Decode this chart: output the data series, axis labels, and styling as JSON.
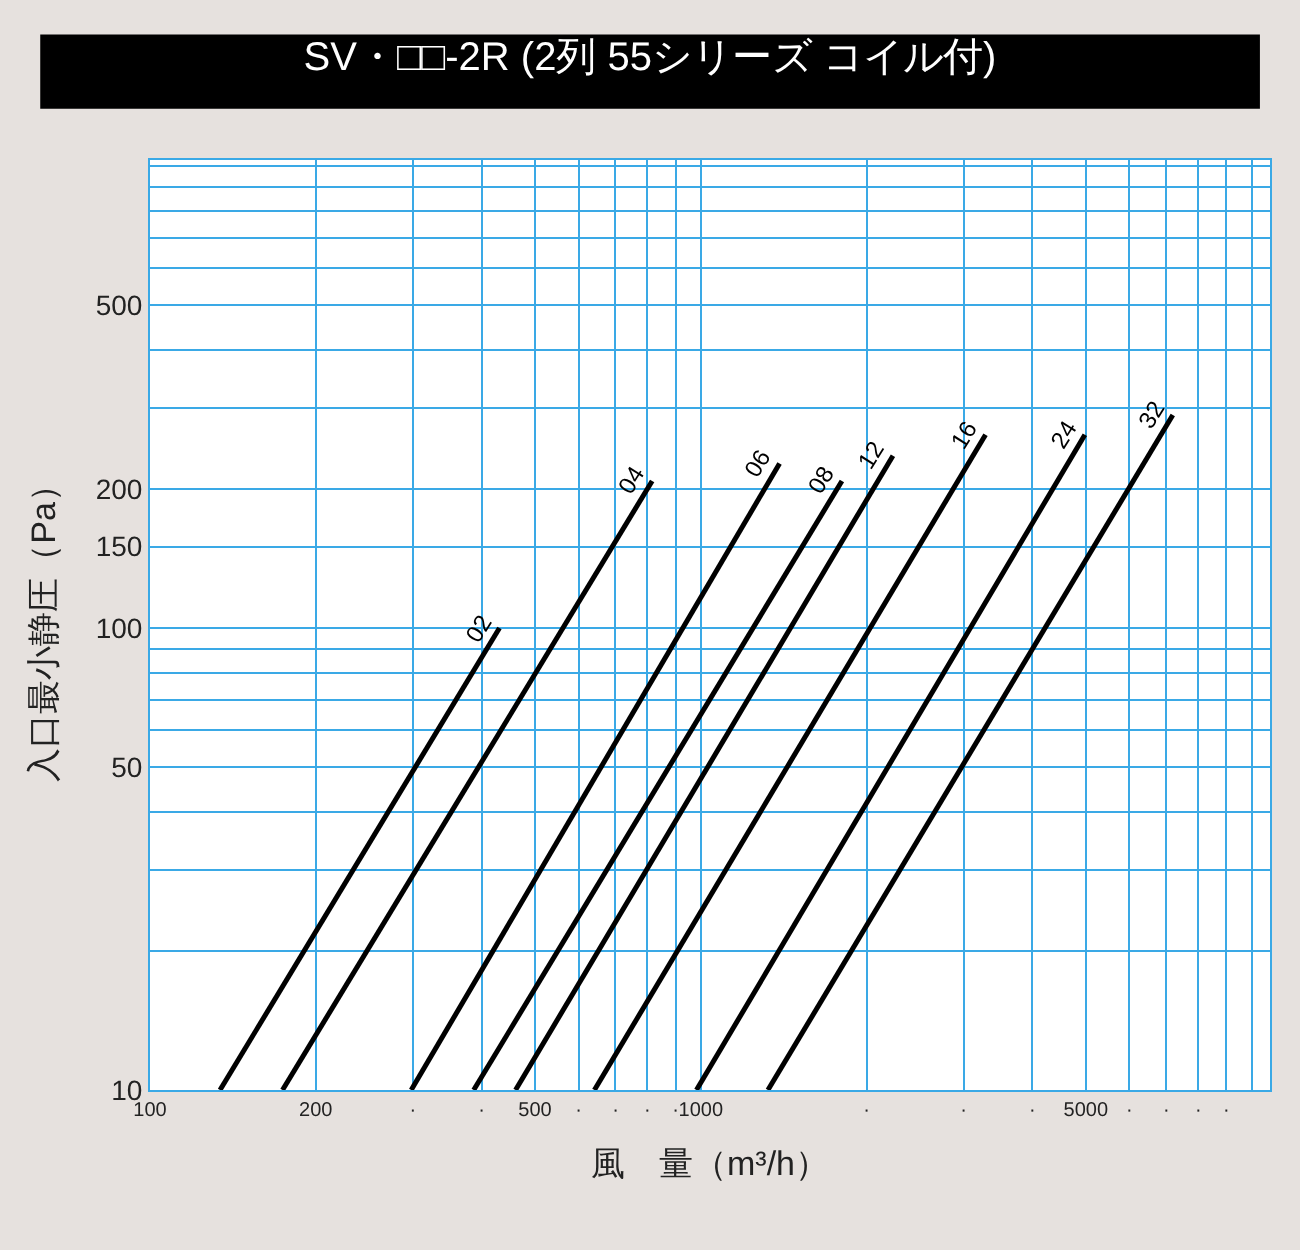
{
  "chart_data": {
    "type": "line",
    "title": "SV・□□-2R (2列 55シリーズ コイル付)",
    "xlabel": "風　量（m³/h）",
    "ylabel": "入口最小静圧（Pa）",
    "log": "xy",
    "grid": true,
    "legend": false,
    "marker": "none",
    "line_style": "solid",
    "xlim": [
      100,
      10800
    ],
    "ylim": [
      10,
      1030
    ],
    "xticks": [
      100,
      200,
      {
        "value": 300,
        "label": "·"
      },
      {
        "value": 400,
        "label": "·"
      },
      500,
      {
        "value": 600,
        "label": "·"
      },
      {
        "value": 700,
        "label": "·"
      },
      {
        "value": 800,
        "label": "·"
      },
      {
        "value": 900,
        "label": "·"
      },
      1000,
      {
        "value": 2000,
        "label": "·"
      },
      {
        "value": 3000,
        "label": "·"
      },
      {
        "value": 4000,
        "label": "·"
      },
      5000,
      {
        "value": 6000,
        "label": "·"
      },
      {
        "value": 7000,
        "label": "·"
      },
      {
        "value": 8000,
        "label": "·"
      },
      {
        "value": 9000,
        "label": "·"
      },
      {
        "value": 10000,
        "label": null
      }
    ],
    "yticks": [
      10,
      {
        "value": 20,
        "label": null
      },
      {
        "value": 30,
        "label": null
      },
      {
        "value": 40,
        "label": null
      },
      50,
      {
        "value": 60,
        "label": null
      },
      {
        "value": 70,
        "label": null
      },
      {
        "value": 80,
        "label": null
      },
      {
        "value": 90,
        "label": null
      },
      100,
      150,
      200,
      {
        "value": 300,
        "label": null
      },
      {
        "value": 400,
        "label": null
      },
      500,
      {
        "value": 600,
        "label": null
      },
      {
        "value": 700,
        "label": null
      },
      {
        "value": 800,
        "label": null
      },
      {
        "value": 900,
        "label": null
      },
      {
        "value": 1000,
        "label": null
      }
    ],
    "series": [
      {
        "name": "02",
        "color": "#000000",
        "x": [
          134,
          431
        ],
        "values": [
          10,
          100
        ]
      },
      {
        "name": "04",
        "color": "#000000",
        "x": [
          174,
          816
        ],
        "values": [
          10,
          208
        ]
      },
      {
        "name": "06",
        "color": "#000000",
        "x": [
          298,
          1390
        ],
        "values": [
          10,
          227
        ]
      },
      {
        "name": "08",
        "color": "#000000",
        "x": [
          387,
          1804
        ],
        "values": [
          10,
          208
        ]
      },
      {
        "name": "12",
        "color": "#000000",
        "x": [
          461,
          2233
        ],
        "values": [
          10,
          236
        ]
      },
      {
        "name": "16",
        "color": "#000000",
        "x": [
          641,
          3288
        ],
        "values": [
          10,
          262
        ]
      },
      {
        "name": "24",
        "color": "#000000",
        "x": [
          982,
          4981
        ],
        "values": [
          10,
          262
        ]
      },
      {
        "name": "32",
        "color": "#000000",
        "x": [
          1324,
          7194
        ],
        "values": [
          10,
          289
        ]
      }
    ]
  }
}
